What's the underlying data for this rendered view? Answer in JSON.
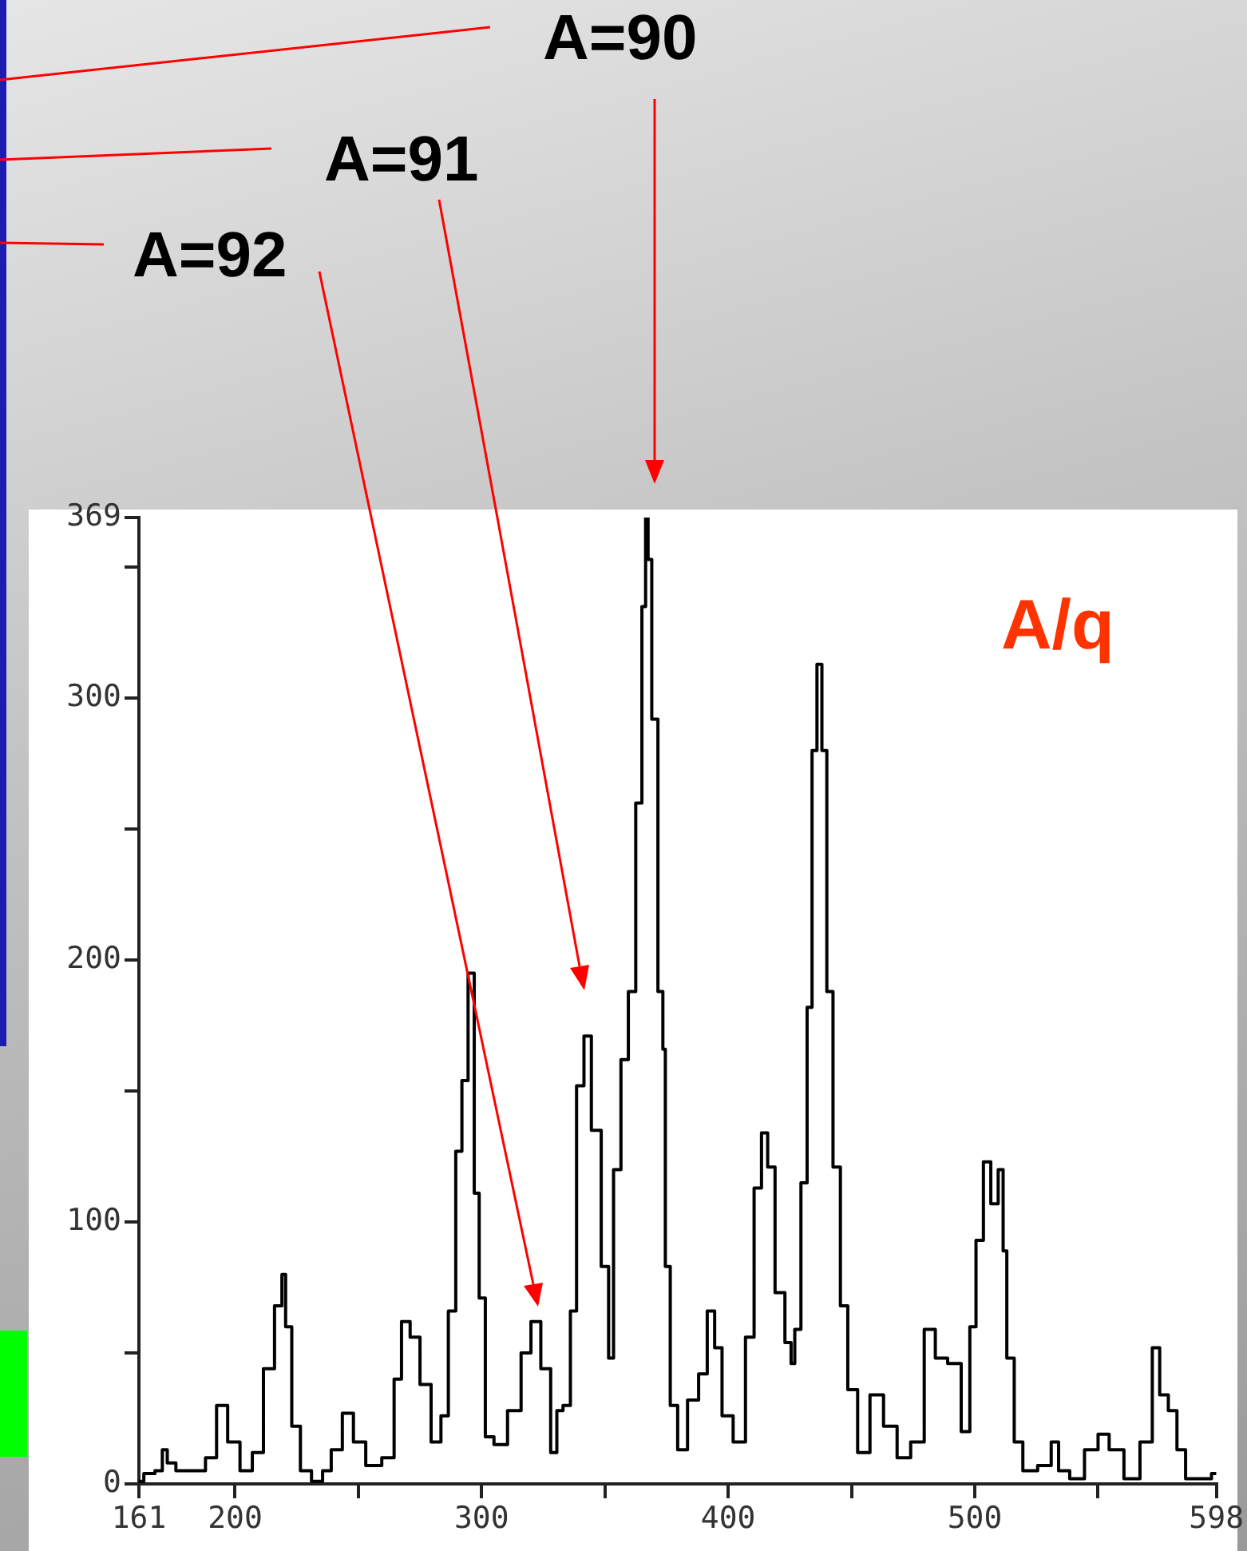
{
  "chart_data": {
    "type": "step",
    "color": "#000000",
    "x": [
      161,
      165,
      170,
      171,
      174,
      178,
      186,
      190,
      195,
      199,
      205,
      209,
      214,
      218,
      220,
      221,
      225,
      228,
      234,
      237,
      241,
      246,
      250,
      256,
      263,
      266,
      269,
      273,
      277,
      282,
      285,
      288,
      291,
      293,
      296,
      298,
      300,
      303,
      307,
      314,
      318,
      322,
      326,
      330,
      331,
      335,
      337,
      340,
      343,
      346,
      351,
      352,
      355,
      358,
      361,
      364,
      366,
      367,
      368,
      370,
      373,
      374,
      375,
      378,
      381,
      386,
      390,
      393,
      396,
      399,
      405,
      409,
      412,
      415,
      417,
      421,
      425,
      426,
      428,
      431,
      433,
      435,
      437,
      439,
      441,
      444,
      447,
      450,
      455,
      460,
      466,
      471,
      477,
      482,
      486,
      492,
      497,
      499,
      502,
      505,
      508,
      511,
      512,
      514,
      518,
      521,
      530,
      532,
      536,
      541,
      548,
      552,
      557,
      564,
      570,
      574,
      576,
      581,
      583,
      588,
      594,
      598
    ],
    "values": [
      1,
      4,
      5,
      13,
      8,
      5,
      5,
      10,
      30,
      16,
      5,
      12,
      44,
      68,
      80,
      60,
      22,
      5,
      1,
      5,
      13,
      27,
      16,
      7,
      10,
      40,
      62,
      56,
      38,
      16,
      26,
      66,
      127,
      154,
      195,
      111,
      71,
      18,
      15,
      28,
      50,
      62,
      44,
      12,
      28,
      30,
      66,
      152,
      171,
      135,
      83,
      48,
      120,
      162,
      188,
      260,
      335,
      369,
      353,
      292,
      188,
      166,
      83,
      30,
      13,
      32,
      42,
      66,
      52,
      26,
      16,
      56,
      113,
      134,
      121,
      73,
      54,
      46,
      59,
      115,
      182,
      280,
      313,
      280,
      188,
      121,
      68,
      36,
      12,
      34,
      22,
      10,
      16,
      59,
      48,
      46,
      20,
      60,
      93,
      123,
      107,
      120,
      89,
      48,
      16,
      5,
      7,
      16,
      5,
      2,
      13,
      19,
      13,
      2,
      16,
      52,
      34,
      28,
      13,
      2,
      2,
      4
    ],
    "xlim": [
      161,
      598
    ],
    "ylim": [
      0,
      369
    ],
    "xticks": [
      161,
      200,
      {
        "value": 250,
        "label": null
      },
      300,
      {
        "value": 350,
        "label": null
      },
      400,
      {
        "value": 450,
        "label": null
      },
      500,
      {
        "value": 550,
        "label": null
      },
      598
    ],
    "yticks": [
      0,
      {
        "value": 50,
        "label": null
      },
      100,
      {
        "value": 150,
        "label": null
      },
      200,
      {
        "value": 250,
        "label": null
      },
      300,
      {
        "value": 350,
        "label": null
      },
      369
    ],
    "grid": false,
    "legend": false,
    "marker": "none",
    "line_style": "solid",
    "annotations": [
      "A=90",
      "A=91",
      "A=92",
      "A/q"
    ]
  }
}
